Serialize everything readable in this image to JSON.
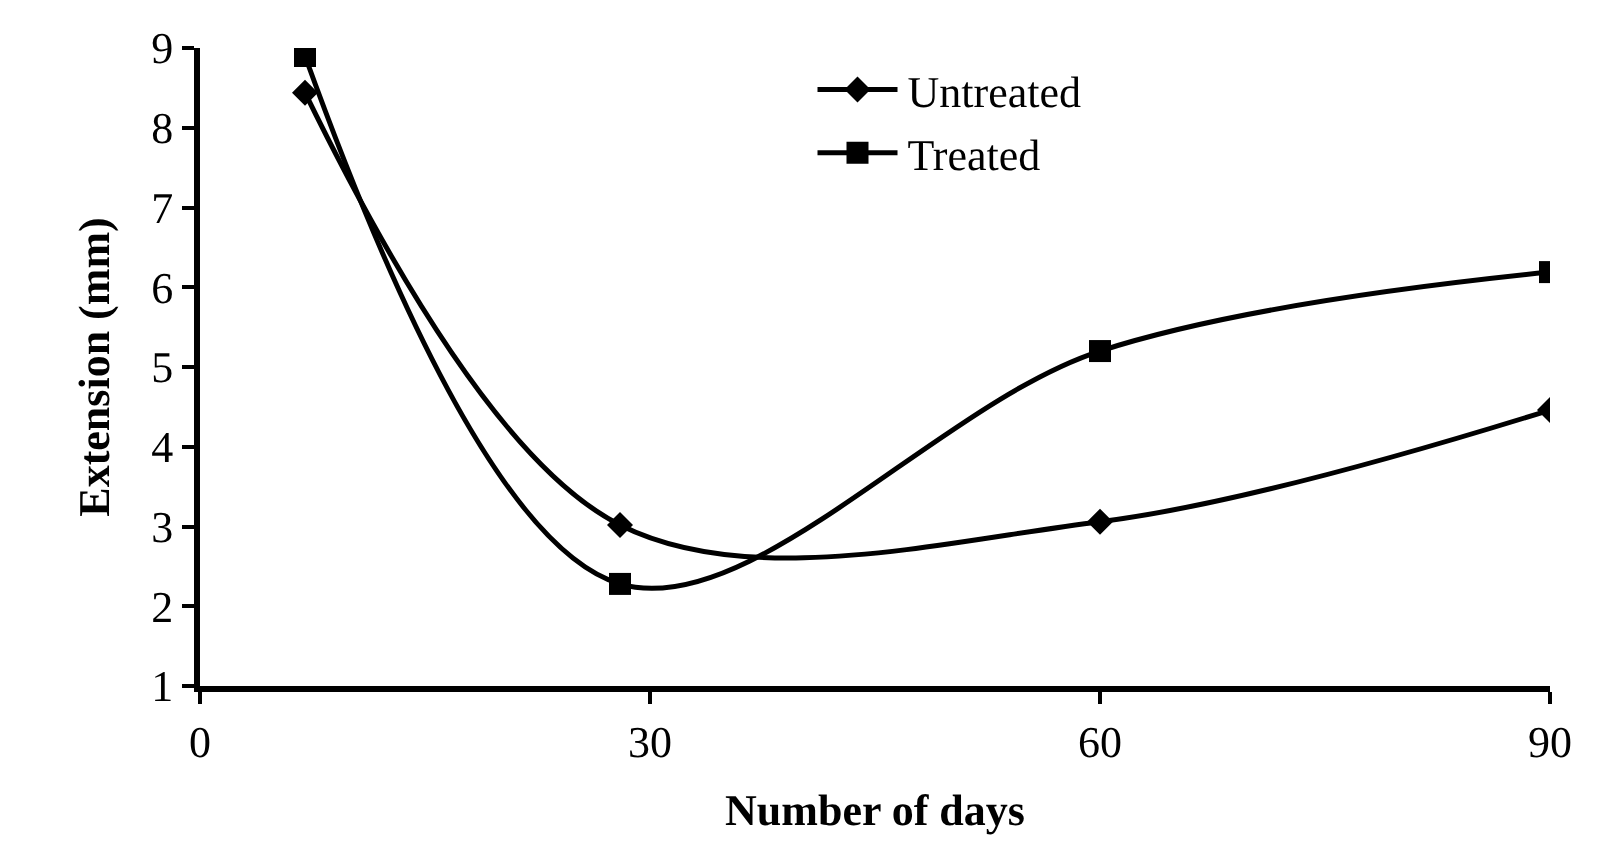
{
  "chart_data": {
    "type": "line",
    "xlabel": "Number of days",
    "ylabel": "Extension (mm)",
    "x": [
      7,
      28,
      60,
      90
    ],
    "series": [
      {
        "name": "Untreated",
        "color": "#000000",
        "marker": "diamond",
        "values": [
          8.44,
          3.02,
          3.06,
          4.46
        ]
      },
      {
        "name": "Treated",
        "color": "#000000",
        "marker": "square",
        "values": [
          8.9,
          2.28,
          5.2,
          6.19
        ]
      }
    ],
    "xlim": [
      0,
      90
    ],
    "xticks": [
      0,
      30,
      60,
      90
    ],
    "ylim": [
      1,
      9
    ],
    "yticks": [
      1,
      2,
      3,
      4,
      5,
      6,
      7,
      8,
      9
    ],
    "legend": "top",
    "line_style": "solid"
  }
}
